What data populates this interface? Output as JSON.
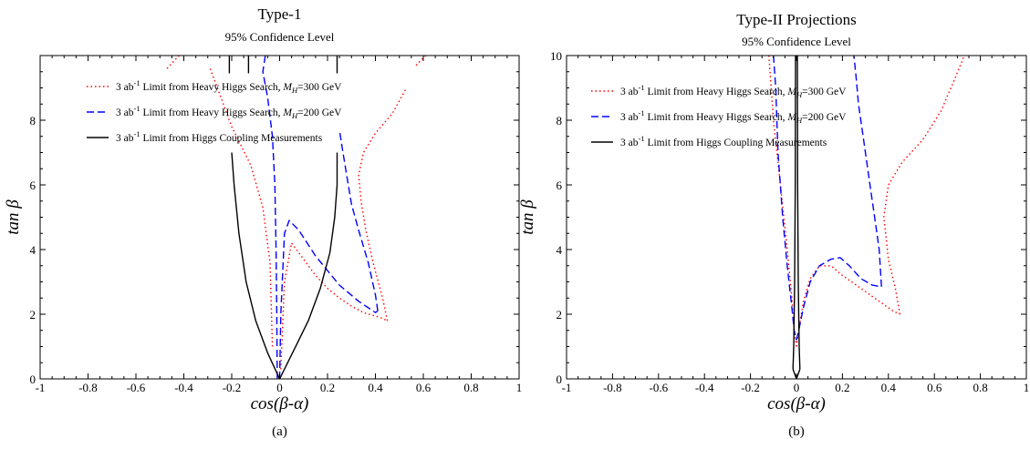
{
  "chart_data": [
    {
      "type": "line",
      "title": "Type-1",
      "subtitle": "95% Confidence Level",
      "xlabel": "cos(β-α)",
      "ylabel": "tan β",
      "caption": "(a)",
      "xlim": [
        -1,
        1
      ],
      "ylim": [
        0,
        10
      ],
      "xticks": [
        "-1",
        "-0.8",
        "-0.6",
        "-0.4",
        "-0.2",
        "0",
        "0.2",
        "0.4",
        "0.6",
        "0.8",
        "1"
      ],
      "yticks": [
        "0",
        "2",
        "4",
        "6",
        "8"
      ],
      "ytick_values": [
        0,
        2,
        4,
        6,
        8
      ],
      "grid": false,
      "legend_position": "upper-center",
      "series": [
        {
          "name": "3 ab⁻¹ Limit from Heavy Higgs Search, M_H=300 GeV",
          "legend_text": "3 ab",
          "legend_sup": "-1",
          "legend_rest": " Limit from Heavy Higgs Search, ",
          "legend_var": "M",
          "legend_sub": "H",
          "legend_end": "=300 GeV",
          "color": "#ff0000",
          "dash": "1.5,3",
          "segments": [
            {
              "x": [
                -0.47,
                -0.42
              ],
              "y": [
                9.6,
                10.0
              ]
            },
            {
              "x": [
                -0.03,
                -0.04,
                -0.07,
                -0.12,
                -0.2,
                -0.29
              ],
              "y": [
                1.0,
                3.6,
                5.3,
                6.6,
                7.8,
                9.6
              ]
            },
            {
              "x": [
                0.005,
                0.02,
                0.05,
                0.1,
                0.15,
                0.2,
                0.25,
                0.3,
                0.35,
                0.42,
                0.45
              ],
              "y": [
                0.3,
                3.0,
                4.2,
                3.7,
                3.2,
                2.8,
                2.5,
                2.25,
                2.05,
                1.9,
                1.8
              ]
            },
            {
              "x": [
                0.45,
                0.43,
                0.39,
                0.36,
                0.34,
                0.33,
                0.35,
                0.4,
                0.47,
                0.53
              ],
              "y": [
                1.8,
                2.5,
                3.6,
                4.6,
                5.5,
                6.3,
                7.0,
                7.6,
                8.2,
                9.0
              ]
            },
            {
              "x": [
                0.57,
                0.61
              ],
              "y": [
                9.7,
                10.0
              ]
            }
          ]
        },
        {
          "name": "3 ab⁻¹ Limit from Heavy Higgs Search, M_H=200 GeV",
          "legend_text": "3 ab",
          "legend_sup": "-1",
          "legend_rest": " Limit from Heavy Higgs Search, ",
          "legend_var": "M",
          "legend_sub": "H",
          "legend_end": "=200 GeV",
          "color": "#0000ff",
          "dash": "8,4",
          "segments": [
            {
              "x": [
                -0.01,
                -0.012,
                -0.015,
                -0.02,
                -0.03,
                -0.05,
                -0.07,
                -0.06
              ],
              "y": [
                0.0,
                2.0,
                4.0,
                6.0,
                7.5,
                8.7,
                9.5,
                10.0
              ]
            },
            {
              "x": [
                0.0,
                0.005,
                0.02,
                0.04,
                0.08,
                0.15,
                0.25,
                0.33,
                0.38,
                0.4,
                0.41
              ],
              "y": [
                0.0,
                2.0,
                4.5,
                4.9,
                4.6,
                3.8,
                2.9,
                2.4,
                2.15,
                2.05,
                2.1
              ]
            },
            {
              "x": [
                0.41,
                0.4,
                0.37,
                0.33,
                0.3,
                0.28,
                0.26,
                0.25
              ],
              "y": [
                2.1,
                2.6,
                3.6,
                4.6,
                5.4,
                6.3,
                7.2,
                7.7
              ]
            }
          ]
        },
        {
          "name": "3 ab⁻¹ Limit from Higgs Coupling Measurements",
          "legend_text": "3 ab",
          "legend_sup": "-1",
          "legend_rest": " Limit from Higgs Coupling Measurements",
          "legend_var": "",
          "legend_sub": "",
          "legend_end": "",
          "color": "#000000",
          "dash": "",
          "segments": [
            {
              "x": [
                0.0,
                -0.05,
                -0.1,
                -0.14,
                -0.17,
                -0.19,
                -0.2
              ],
              "y": [
                0.0,
                0.8,
                1.8,
                3.0,
                4.5,
                6.0,
                7.0
              ]
            },
            {
              "x": [
                0.0,
                0.06,
                0.12,
                0.17,
                0.21,
                0.23,
                0.24,
                0.24
              ],
              "y": [
                0.0,
                0.9,
                1.8,
                2.8,
                3.9,
                5.0,
                6.0,
                7.0
              ]
            },
            {
              "x": [
                -0.21,
                -0.21
              ],
              "y": [
                9.45,
                10.0
              ]
            },
            {
              "x": [
                -0.13,
                -0.13
              ],
              "y": [
                9.45,
                10.0
              ]
            },
            {
              "x": [
                0.24,
                0.24
              ],
              "y": [
                9.45,
                10.0
              ]
            }
          ]
        }
      ]
    },
    {
      "type": "line",
      "title": "Type-II Projections",
      "subtitle": "95% Confidence Level",
      "xlabel": "cos(β-α)",
      "ylabel": "tan β",
      "caption": "(b)",
      "xlim": [
        -1,
        1
      ],
      "ylim": [
        0,
        10
      ],
      "xticks": [
        "-1",
        "-0.8",
        "-0.6",
        "-0.4",
        "-0.2",
        "0",
        "0.2",
        "0.4",
        "0.6",
        "0.8",
        "1"
      ],
      "yticks": [
        "0",
        "2",
        "4",
        "6",
        "8",
        "10"
      ],
      "ytick_values": [
        0,
        2,
        4,
        6,
        8,
        10
      ],
      "grid": false,
      "legend_position": "upper-center",
      "series": [
        {
          "name": "3 ab⁻¹ Limit from Heavy Higgs Search, M_H=300 GeV",
          "legend_text": "3 ab",
          "legend_sup": "-1",
          "legend_rest": " Limit from Heavy Higgs Search, ",
          "legend_var": "M",
          "legend_sub": "H",
          "legend_end": "=300 GeV",
          "color": "#ff0000",
          "dash": "1.5,3",
          "segments": [
            {
              "x": [
                -0.12,
                -0.1,
                -0.07,
                -0.04,
                -0.02,
                -0.01,
                0.0
              ],
              "y": [
                10.0,
                8.0,
                6.0,
                4.0,
                2.5,
                1.5,
                1.0
              ]
            },
            {
              "x": [
                0.0,
                0.01,
                0.03,
                0.06,
                0.1,
                0.15,
                0.2,
                0.28,
                0.36,
                0.42,
                0.45
              ],
              "y": [
                1.0,
                1.5,
                2.4,
                3.1,
                3.5,
                3.5,
                3.2,
                2.8,
                2.4,
                2.1,
                2.0
              ]
            },
            {
              "x": [
                0.45,
                0.43,
                0.4,
                0.38,
                0.4,
                0.46,
                0.55,
                0.63,
                0.69,
                0.73
              ],
              "y": [
                2.0,
                2.8,
                3.7,
                5.0,
                6.0,
                6.7,
                7.4,
                8.3,
                9.3,
                10.0
              ]
            }
          ]
        },
        {
          "name": "3 ab⁻¹ Limit from Heavy Higgs Search, M_H=200 GeV",
          "legend_text": "3 ab",
          "legend_sup": "-1",
          "legend_rest": " Limit from Heavy Higgs Search, ",
          "legend_var": "M",
          "legend_sub": "H",
          "legend_end": "=200 GeV",
          "color": "#0000ff",
          "dash": "8,4",
          "segments": [
            {
              "x": [
                -0.1,
                -0.09,
                -0.08,
                -0.06,
                -0.04,
                -0.02,
                -0.01,
                0.0
              ],
              "y": [
                10.0,
                9.0,
                7.0,
                5.0,
                3.5,
                2.2,
                1.5,
                1.2
              ]
            },
            {
              "x": [
                0.0,
                0.01,
                0.03,
                0.06,
                0.1,
                0.15,
                0.19,
                0.23,
                0.28,
                0.33,
                0.37
              ],
              "y": [
                1.2,
                1.5,
                2.2,
                3.0,
                3.5,
                3.7,
                3.75,
                3.5,
                3.1,
                2.9,
                2.85
              ]
            },
            {
              "x": [
                0.37,
                0.36,
                0.34,
                0.32,
                0.29,
                0.27,
                0.26,
                0.25
              ],
              "y": [
                2.85,
                4.0,
                5.0,
                6.0,
                7.5,
                8.5,
                9.3,
                10.0
              ]
            }
          ]
        },
        {
          "name": "3 ab⁻¹ Limit from Higgs Coupling Measurements",
          "legend_text": "3 ab",
          "legend_sup": "-1",
          "legend_rest": " Limit from Higgs Coupling Measurements",
          "legend_var": "",
          "legend_sub": "",
          "legend_end": "",
          "color": "#000000",
          "dash": "",
          "segments": [
            {
              "x": [
                -0.015,
                -0.012,
                -0.008,
                -0.005,
                -0.004
              ],
              "y": [
                0.3,
                1.0,
                3.0,
                6.0,
                10.0
              ]
            },
            {
              "x": [
                0.015,
                0.012,
                0.008,
                0.005,
                0.004
              ],
              "y": [
                0.3,
                1.0,
                3.0,
                6.0,
                10.0
              ]
            },
            {
              "x": [
                -0.015,
                0.0,
                0.015
              ],
              "y": [
                0.3,
                0.0,
                0.3
              ]
            }
          ]
        }
      ]
    }
  ]
}
